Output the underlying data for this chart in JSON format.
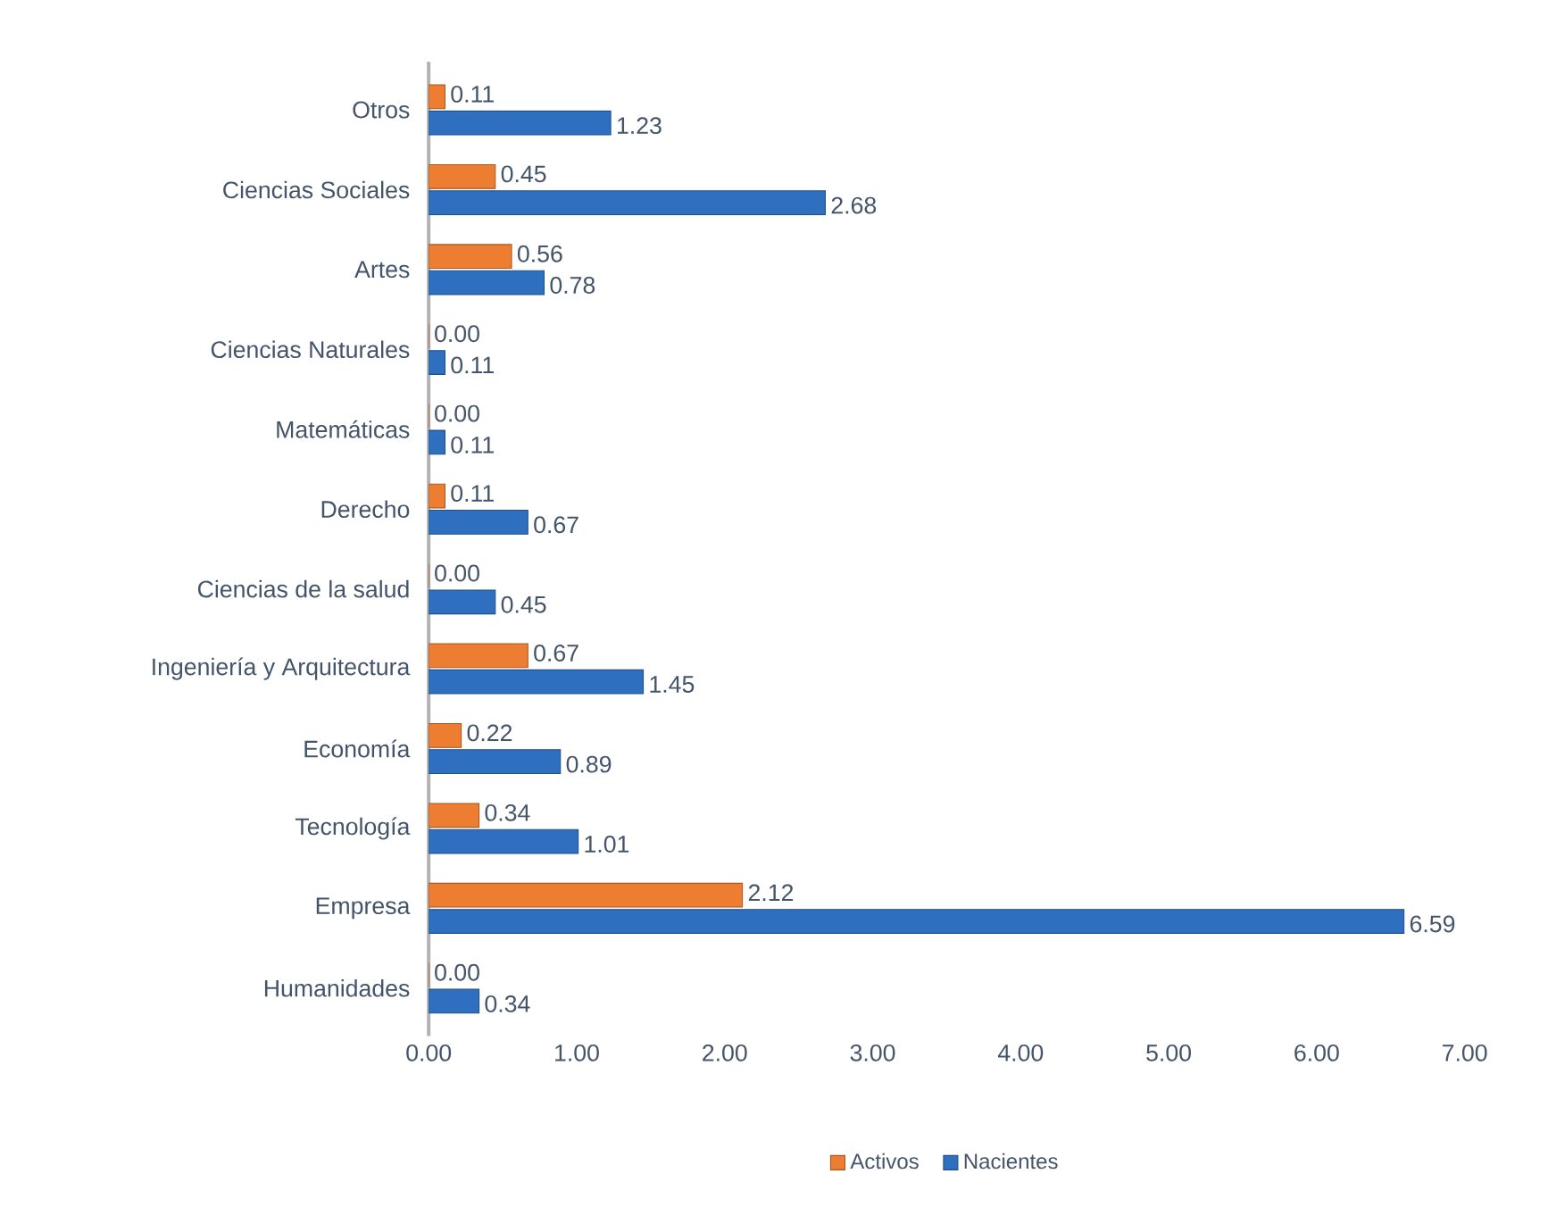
{
  "chart_data": {
    "type": "bar",
    "orientation": "horizontal",
    "categories": [
      "Otros",
      "Ciencias Sociales",
      "Artes",
      "Ciencias Naturales",
      "Matemáticas",
      "Derecho",
      "Ciencias de la salud",
      "Ingeniería y Arquitectura",
      "Economía",
      "Tecnología",
      "Empresa",
      "Humanidades"
    ],
    "series": [
      {
        "name": "Activos",
        "color": "#ed7d31",
        "values": [
          0.11,
          0.45,
          0.56,
          0.0,
          0.0,
          0.11,
          0.0,
          0.67,
          0.22,
          0.34,
          2.12,
          0.0
        ],
        "value_labels": [
          "0.11",
          "0.45",
          "0.56",
          "0.00",
          "0.00",
          "0.11",
          "0.00",
          "0.67",
          "0.22",
          "0.34",
          "2.12",
          "0.00"
        ]
      },
      {
        "name": "Nacientes",
        "color": "#2e6fc0",
        "values": [
          1.23,
          2.68,
          0.78,
          0.11,
          0.11,
          0.67,
          0.45,
          1.45,
          0.89,
          1.01,
          6.59,
          0.34
        ],
        "value_labels": [
          "1.23",
          "2.68",
          "0.78",
          "0.11",
          "0.11",
          "0.67",
          "0.45",
          "1.45",
          "0.89",
          "1.01",
          "6.59",
          "0.34"
        ]
      }
    ],
    "xlim": [
      0,
      7
    ],
    "xticks": [
      {
        "value": 0,
        "label": "0.00"
      },
      {
        "value": 1,
        "label": "1.00"
      },
      {
        "value": 2,
        "label": "2.00"
      },
      {
        "value": 3,
        "label": "3.00"
      },
      {
        "value": 4,
        "label": "4.00"
      },
      {
        "value": 5,
        "label": "5.00"
      },
      {
        "value": 6,
        "label": "6.00"
      },
      {
        "value": 7,
        "label": "7.00"
      }
    ],
    "legend": "bottom",
    "grid": false
  }
}
